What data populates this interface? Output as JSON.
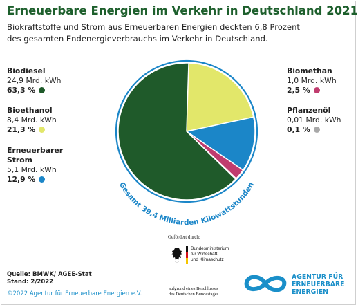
{
  "title": "Erneuerbare Energien im Verkehr in Deutschland 2021",
  "subtitle": "Biokraftstoffe und Strom aus Erneuerbaren Energien deckten 6,8 Prozent des gesamten Endenergieverbrauchs im Verkehr in Deutschland.",
  "colors": {
    "title": "#1d5f2c",
    "biodiesel": "#1f5a2a",
    "bioethanol": "#e2e76a",
    "strom": "#1b86c8",
    "biomethan": "#c03c6e",
    "pflanzenoel": "#a8a8a8",
    "accent_blue": "#1a8fc9"
  },
  "chart_data": {
    "type": "pie",
    "title": "Erneuerbare Energien im Verkehr in Deutschland 2021",
    "total_label": "Gesamt 39,4 Milliarden Kilowattstunden",
    "unit": "Mrd. kWh",
    "slices": [
      {
        "name": "Biodiesel",
        "value": 24.9,
        "value_text": "24,9 Mrd. kWh",
        "percent": 63.3,
        "percent_text": "63,3 %",
        "color": "#1f5a2a"
      },
      {
        "name": "Bioethanol",
        "value": 8.4,
        "value_text": "8,4 Mrd. kWh",
        "percent": 21.3,
        "percent_text": "21,3 %",
        "color": "#e2e76a"
      },
      {
        "name": "Erneuerbarer Strom",
        "value": 5.1,
        "value_text": "5,1 Mrd. kWh",
        "percent": 12.9,
        "percent_text": "12,9 %",
        "color": "#1b86c8"
      },
      {
        "name": "Biomethan",
        "value": 1.0,
        "value_text": "1,0 Mrd. kWh",
        "percent": 2.5,
        "percent_text": "2,5 %",
        "color": "#c03c6e"
      },
      {
        "name": "Pflanzenöl",
        "value": 0.01,
        "value_text": "0,01 Mrd. kWh",
        "percent": 0.1,
        "percent_text": "0,1 %",
        "color": "#a8a8a8"
      }
    ]
  },
  "legend_left": [
    {
      "name": "Biodiesel",
      "value": "24,9 Mrd. kWh",
      "pct": "63,3 %",
      "color": "#1f5a2a"
    },
    {
      "name": "Bioethanol",
      "value": "8,4 Mrd. kWh",
      "pct": "21,3 %",
      "color": "#e2e76a"
    },
    {
      "name": "Erneuerbarer\nStrom",
      "value": "5,1 Mrd. kWh",
      "pct": "12,9 %",
      "color": "#1b86c8"
    }
  ],
  "legend_right": [
    {
      "name": "Biomethan",
      "value": "1,0 Mrd. kWh",
      "pct": "2,5 %",
      "color": "#c03c6e"
    },
    {
      "name": "Pflanzenöl",
      "value": "0,01 Mrd. kWh",
      "pct": "0,1 %",
      "color": "#a8a8a8"
    }
  ],
  "sponsor": {
    "label": "Gefördert durch:",
    "ministry": "Bundesministerium\nfür Wirtschaft\nund Klimaschutz",
    "resolution": "aufgrund eines Beschlusses\ndes Deutschen Bundestages"
  },
  "source": "Quelle: BMWK/ AGEE-Stat\nStand:  2/2022",
  "copyright": "©2022 Agentur für Erneuerbare Energien e.V.",
  "logo": {
    "line1": "AGENTUR FÜR",
    "line2": "ERNEUERBARE",
    "line3": "ENERGIEN"
  }
}
